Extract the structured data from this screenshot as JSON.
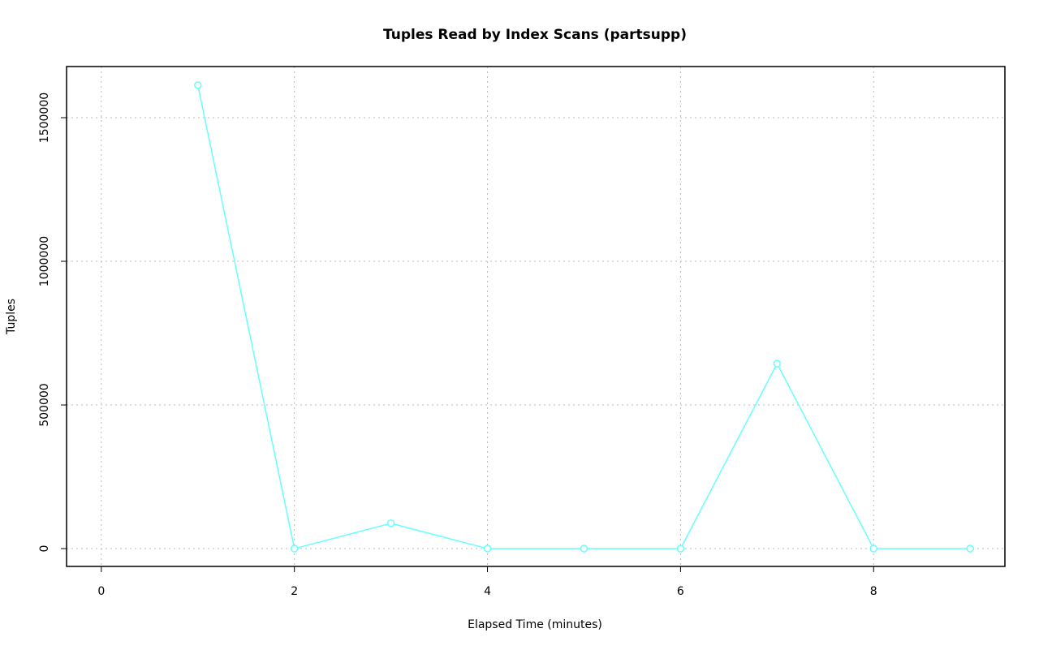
{
  "chart_data": {
    "type": "line",
    "title": "Tuples Read by Index Scans (partsupp)",
    "x_label": "Elapsed Time (minutes)",
    "y_label": "Tuples",
    "x": [
      1,
      2,
      3,
      4,
      5,
      6,
      7,
      8,
      9
    ],
    "series": [
      {
        "name": "partsupp",
        "color": "#66ffff",
        "values": [
          1613000,
          0,
          88000,
          0,
          0,
          0,
          644000,
          0,
          0
        ]
      }
    ],
    "xlim": [
      -0.36,
      9.36
    ],
    "xticks": [
      0,
      2,
      4,
      6,
      8
    ],
    "ylim": [
      -62000,
      1678000
    ],
    "yticks": [
      0,
      500000,
      1000000,
      1500000
    ],
    "grid": true
  }
}
